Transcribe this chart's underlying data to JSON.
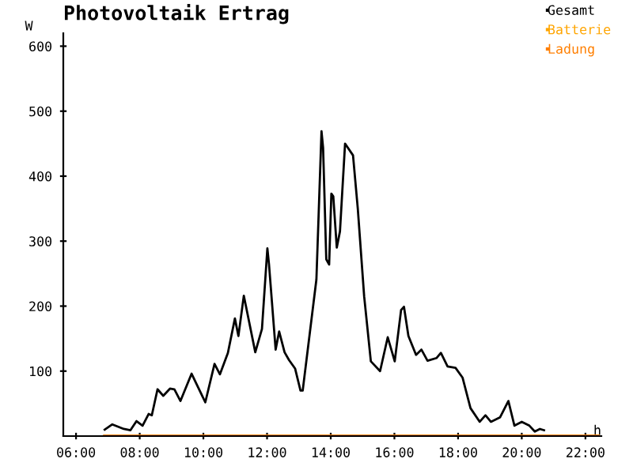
{
  "chart_data": {
    "type": "line",
    "title": "Photovoltaik Ertrag",
    "xlabel": "h",
    "ylabel": "W",
    "xlim": [
      5.6,
      22.5
    ],
    "ylim": [
      0,
      620
    ],
    "xticks": [
      {
        "value": 6,
        "label": "06:00"
      },
      {
        "value": 8,
        "label": "08:00"
      },
      {
        "value": 10,
        "label": "10:00"
      },
      {
        "value": 12,
        "label": "12:00"
      },
      {
        "value": 14,
        "label": "14:00"
      },
      {
        "value": 16,
        "label": "16:00"
      },
      {
        "value": 18,
        "label": "18:00"
      },
      {
        "value": 20,
        "label": "20:00"
      },
      {
        "value": 22,
        "label": "22:00"
      }
    ],
    "yticks": [
      100,
      200,
      300,
      400,
      500,
      600
    ],
    "grid": false,
    "legend": "top right",
    "marker": "none",
    "line_style": "solid",
    "series": [
      {
        "name": "Gesamt",
        "color": "#000000",
        "x": [
          6.9,
          7.14,
          7.5,
          7.71,
          7.9,
          8.09,
          8.28,
          8.38,
          8.56,
          8.74,
          8.95,
          9.09,
          9.28,
          9.63,
          10.06,
          10.35,
          10.52,
          10.77,
          10.99,
          11.1,
          11.27,
          11.63,
          11.84,
          12.01,
          12.06,
          12.27,
          12.38,
          12.55,
          12.69,
          12.88,
          13.05,
          13.12,
          13.55,
          13.71,
          13.76,
          13.86,
          13.95,
          14.02,
          14.08,
          14.19,
          14.29,
          14.45,
          14.7,
          14.85,
          15.05,
          15.26,
          15.55,
          15.79,
          16.01,
          16.21,
          16.3,
          16.44,
          16.68,
          16.85,
          17.04,
          17.32,
          17.46,
          17.67,
          17.92,
          18.14,
          18.39,
          18.68,
          18.86,
          19.03,
          19.32,
          19.58,
          19.77,
          20.0,
          20.24,
          20.41,
          20.57,
          20.7
        ],
        "values": [
          10,
          18,
          11,
          9,
          23,
          16,
          34,
          32,
          72,
          62,
          73,
          72,
          54,
          96,
          52,
          111,
          95,
          128,
          181,
          154,
          216,
          129,
          165,
          289,
          265,
          133,
          161,
          129,
          117,
          104,
          70,
          70,
          241,
          469,
          444,
          272,
          264,
          373,
          369,
          290,
          315,
          450,
          432,
          350,
          215,
          115,
          100,
          152,
          115,
          194,
          199,
          154,
          125,
          133,
          116,
          120,
          128,
          107,
          105,
          90,
          43,
          22,
          32,
          22,
          29,
          54,
          16,
          22,
          16,
          7,
          11,
          9
        ]
      },
      {
        "name": "Batterie",
        "color": "#ffa500"
      },
      {
        "name": "Ladung",
        "color": "#ff7f00",
        "x": [
          6.9,
          22.4
        ],
        "values": [
          0,
          0
        ]
      }
    ]
  }
}
